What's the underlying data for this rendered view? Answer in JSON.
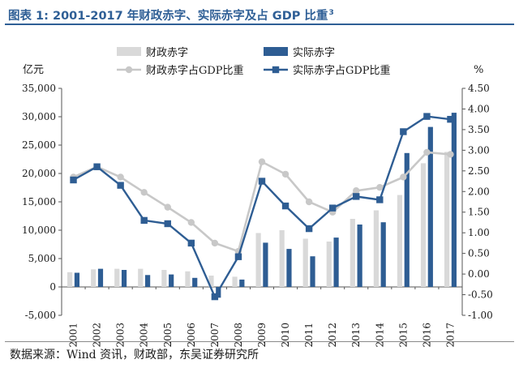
{
  "figure": {
    "title": "图表 1: 2001-2017 年财政赤字、实际赤字及占 GDP 比重",
    "title_note": "3",
    "source": "数据来源：Wind 资讯，财政部，东吴证券研究所"
  },
  "chart_data": {
    "type": "bar",
    "categories": [
      "2001",
      "2002",
      "2003",
      "2004",
      "2005",
      "2006",
      "2007",
      "2008",
      "2009",
      "2010",
      "2011",
      "2012",
      "2013",
      "2014",
      "2015",
      "2016",
      "2017"
    ],
    "left_axis": {
      "label": "亿元",
      "ylim": [
        -5000,
        35000
      ],
      "ticks": [
        -5000,
        0,
        5000,
        10000,
        15000,
        20000,
        25000,
        30000,
        35000
      ],
      "tick_labels": [
        "-5,000",
        "0",
        "5,000",
        "10,000",
        "15,000",
        "20,000",
        "25,000",
        "30,000",
        "35,000"
      ]
    },
    "right_axis": {
      "label": "%",
      "ylim": [
        -1.0,
        4.5
      ],
      "ticks": [
        -1.0,
        -0.5,
        0.0,
        0.5,
        1.0,
        1.5,
        2.0,
        2.5,
        3.0,
        3.5,
        4.0,
        4.5
      ],
      "tick_labels": [
        "-1.00",
        "-0.50",
        "0.00",
        "0.50",
        "1.00",
        "1.50",
        "2.00",
        "2.50",
        "3.00",
        "3.50",
        "4.00",
        "4.50"
      ]
    },
    "series": [
      {
        "name": "财政赤字",
        "kind": "bar",
        "axis": "left",
        "color": "#d9d9d9",
        "values": [
          2600,
          3100,
          3200,
          3200,
          3000,
          2750,
          2000,
          1800,
          9500,
          10000,
          8500,
          8000,
          12000,
          13500,
          16200,
          21800,
          23800
        ]
      },
      {
        "name": "实际赤字",
        "kind": "bar",
        "axis": "left",
        "color": "#2e5d93",
        "values": [
          2500,
          3200,
          3000,
          2100,
          2200,
          1600,
          -1900,
          1300,
          7800,
          6700,
          5400,
          8700,
          11000,
          11400,
          23600,
          28200,
          30700
        ]
      },
      {
        "name": "财政赤字占GDP比重",
        "kind": "line",
        "axis": "right",
        "color": "#c8c8c8",
        "values": [
          2.35,
          2.6,
          2.35,
          1.98,
          1.62,
          1.25,
          0.75,
          0.55,
          2.72,
          2.42,
          1.75,
          1.5,
          2.02,
          2.1,
          2.35,
          2.95,
          2.9
        ]
      },
      {
        "name": "实际赤字占GDP比重",
        "kind": "line",
        "axis": "right",
        "color": "#2e5d93",
        "values": [
          2.28,
          2.6,
          2.15,
          1.3,
          1.22,
          0.75,
          -0.55,
          0.42,
          2.25,
          1.65,
          1.1,
          1.6,
          1.88,
          1.8,
          3.45,
          3.82,
          3.75
        ]
      }
    ],
    "legend": {
      "position": "top",
      "entries": [
        "财政赤字",
        "实际赤字",
        "财政赤字占GDP比重",
        "实际赤字占GDP比重"
      ]
    }
  }
}
